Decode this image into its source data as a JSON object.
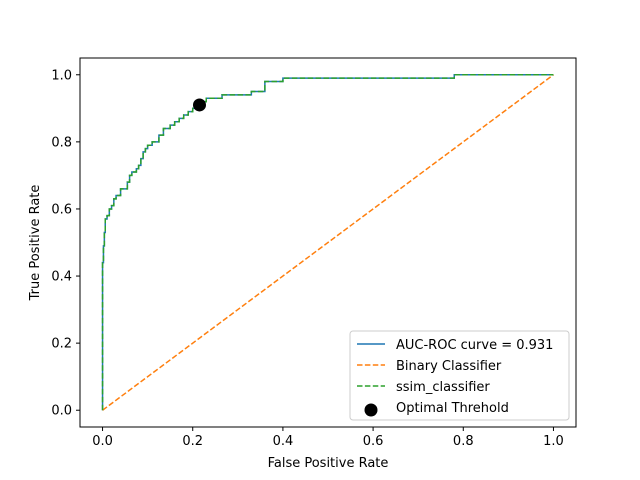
{
  "chart_data": {
    "type": "line",
    "title": "",
    "xlabel": "False Positive Rate",
    "ylabel": "True Positive Rate",
    "xlim": [
      -0.05,
      1.05
    ],
    "ylim": [
      -0.05,
      1.05
    ],
    "xticks": [
      0.0,
      0.2,
      0.4,
      0.6,
      0.8,
      1.0
    ],
    "yticks": [
      0.0,
      0.2,
      0.4,
      0.6,
      0.8,
      1.0
    ],
    "xtick_labels": [
      "0.0",
      "0.2",
      "0.4",
      "0.6",
      "0.8",
      "1.0"
    ],
    "ytick_labels": [
      "0.0",
      "0.2",
      "0.4",
      "0.6",
      "0.8",
      "1.0"
    ],
    "grid": false,
    "legend_position": "lower-right",
    "series": [
      {
        "name": "AUC-ROC curve = 0.931",
        "style": "solid",
        "color": "#1f77b4",
        "x": [
          0.0,
          0.0,
          0.002,
          0.002,
          0.004,
          0.004,
          0.006,
          0.006,
          0.01,
          0.01,
          0.015,
          0.015,
          0.02,
          0.02,
          0.025,
          0.025,
          0.03,
          0.03,
          0.04,
          0.04,
          0.055,
          0.055,
          0.06,
          0.06,
          0.065,
          0.065,
          0.075,
          0.075,
          0.08,
          0.08,
          0.085,
          0.085,
          0.09,
          0.09,
          0.095,
          0.095,
          0.1,
          0.1,
          0.11,
          0.11,
          0.125,
          0.125,
          0.135,
          0.135,
          0.15,
          0.15,
          0.16,
          0.16,
          0.17,
          0.17,
          0.18,
          0.18,
          0.19,
          0.19,
          0.2,
          0.2,
          0.21,
          0.21,
          0.215,
          0.215,
          0.23,
          0.23,
          0.265,
          0.265,
          0.33,
          0.33,
          0.36,
          0.36,
          0.4,
          0.4,
          0.78,
          0.78,
          1.0
        ],
        "y": [
          0.0,
          0.44,
          0.44,
          0.49,
          0.49,
          0.53,
          0.53,
          0.57,
          0.57,
          0.58,
          0.58,
          0.6,
          0.6,
          0.61,
          0.61,
          0.63,
          0.63,
          0.64,
          0.64,
          0.66,
          0.66,
          0.68,
          0.68,
          0.7,
          0.7,
          0.71,
          0.71,
          0.72,
          0.72,
          0.73,
          0.73,
          0.75,
          0.75,
          0.77,
          0.77,
          0.78,
          0.78,
          0.79,
          0.79,
          0.8,
          0.8,
          0.82,
          0.82,
          0.84,
          0.84,
          0.85,
          0.85,
          0.86,
          0.86,
          0.87,
          0.87,
          0.88,
          0.88,
          0.89,
          0.89,
          0.9,
          0.9,
          0.91,
          0.91,
          0.92,
          0.92,
          0.93,
          0.93,
          0.94,
          0.94,
          0.95,
          0.95,
          0.98,
          0.98,
          0.99,
          0.99,
          1.0,
          1.0
        ]
      },
      {
        "name": "Binary Classifier",
        "style": "dashed",
        "color": "#ff7f0e",
        "x": [
          0.0,
          1.0
        ],
        "y": [
          0.0,
          1.0
        ]
      },
      {
        "name": "ssim_classifier",
        "style": "dashed",
        "color": "#2ca02c",
        "x": [
          0.0,
          0.0,
          0.002,
          0.002,
          0.004,
          0.004,
          0.006,
          0.006,
          0.01,
          0.01,
          0.015,
          0.015,
          0.02,
          0.02,
          0.025,
          0.025,
          0.03,
          0.03,
          0.04,
          0.04,
          0.055,
          0.055,
          0.06,
          0.06,
          0.065,
          0.065,
          0.075,
          0.075,
          0.08,
          0.08,
          0.085,
          0.085,
          0.09,
          0.09,
          0.095,
          0.095,
          0.1,
          0.1,
          0.11,
          0.11,
          0.125,
          0.125,
          0.135,
          0.135,
          0.15,
          0.15,
          0.16,
          0.16,
          0.17,
          0.17,
          0.18,
          0.18,
          0.19,
          0.19,
          0.2,
          0.2,
          0.21,
          0.21,
          0.215,
          0.215,
          0.23,
          0.23,
          0.265,
          0.265,
          0.33,
          0.33,
          0.36,
          0.36,
          0.4,
          0.4,
          0.78,
          0.78,
          1.0
        ],
        "y": [
          0.0,
          0.44,
          0.44,
          0.49,
          0.49,
          0.53,
          0.53,
          0.57,
          0.57,
          0.58,
          0.58,
          0.6,
          0.6,
          0.61,
          0.61,
          0.63,
          0.63,
          0.64,
          0.64,
          0.66,
          0.66,
          0.68,
          0.68,
          0.7,
          0.7,
          0.71,
          0.71,
          0.72,
          0.72,
          0.73,
          0.73,
          0.75,
          0.75,
          0.77,
          0.77,
          0.78,
          0.78,
          0.79,
          0.79,
          0.8,
          0.8,
          0.82,
          0.82,
          0.84,
          0.84,
          0.85,
          0.85,
          0.86,
          0.86,
          0.87,
          0.87,
          0.88,
          0.88,
          0.89,
          0.89,
          0.9,
          0.9,
          0.91,
          0.91,
          0.92,
          0.92,
          0.93,
          0.93,
          0.94,
          0.94,
          0.95,
          0.95,
          0.98,
          0.98,
          0.99,
          0.99,
          1.0,
          1.0
        ]
      }
    ],
    "markers": [
      {
        "name": "Optimal Threhold",
        "x": 0.215,
        "y": 0.91,
        "color": "#000000"
      }
    ]
  }
}
